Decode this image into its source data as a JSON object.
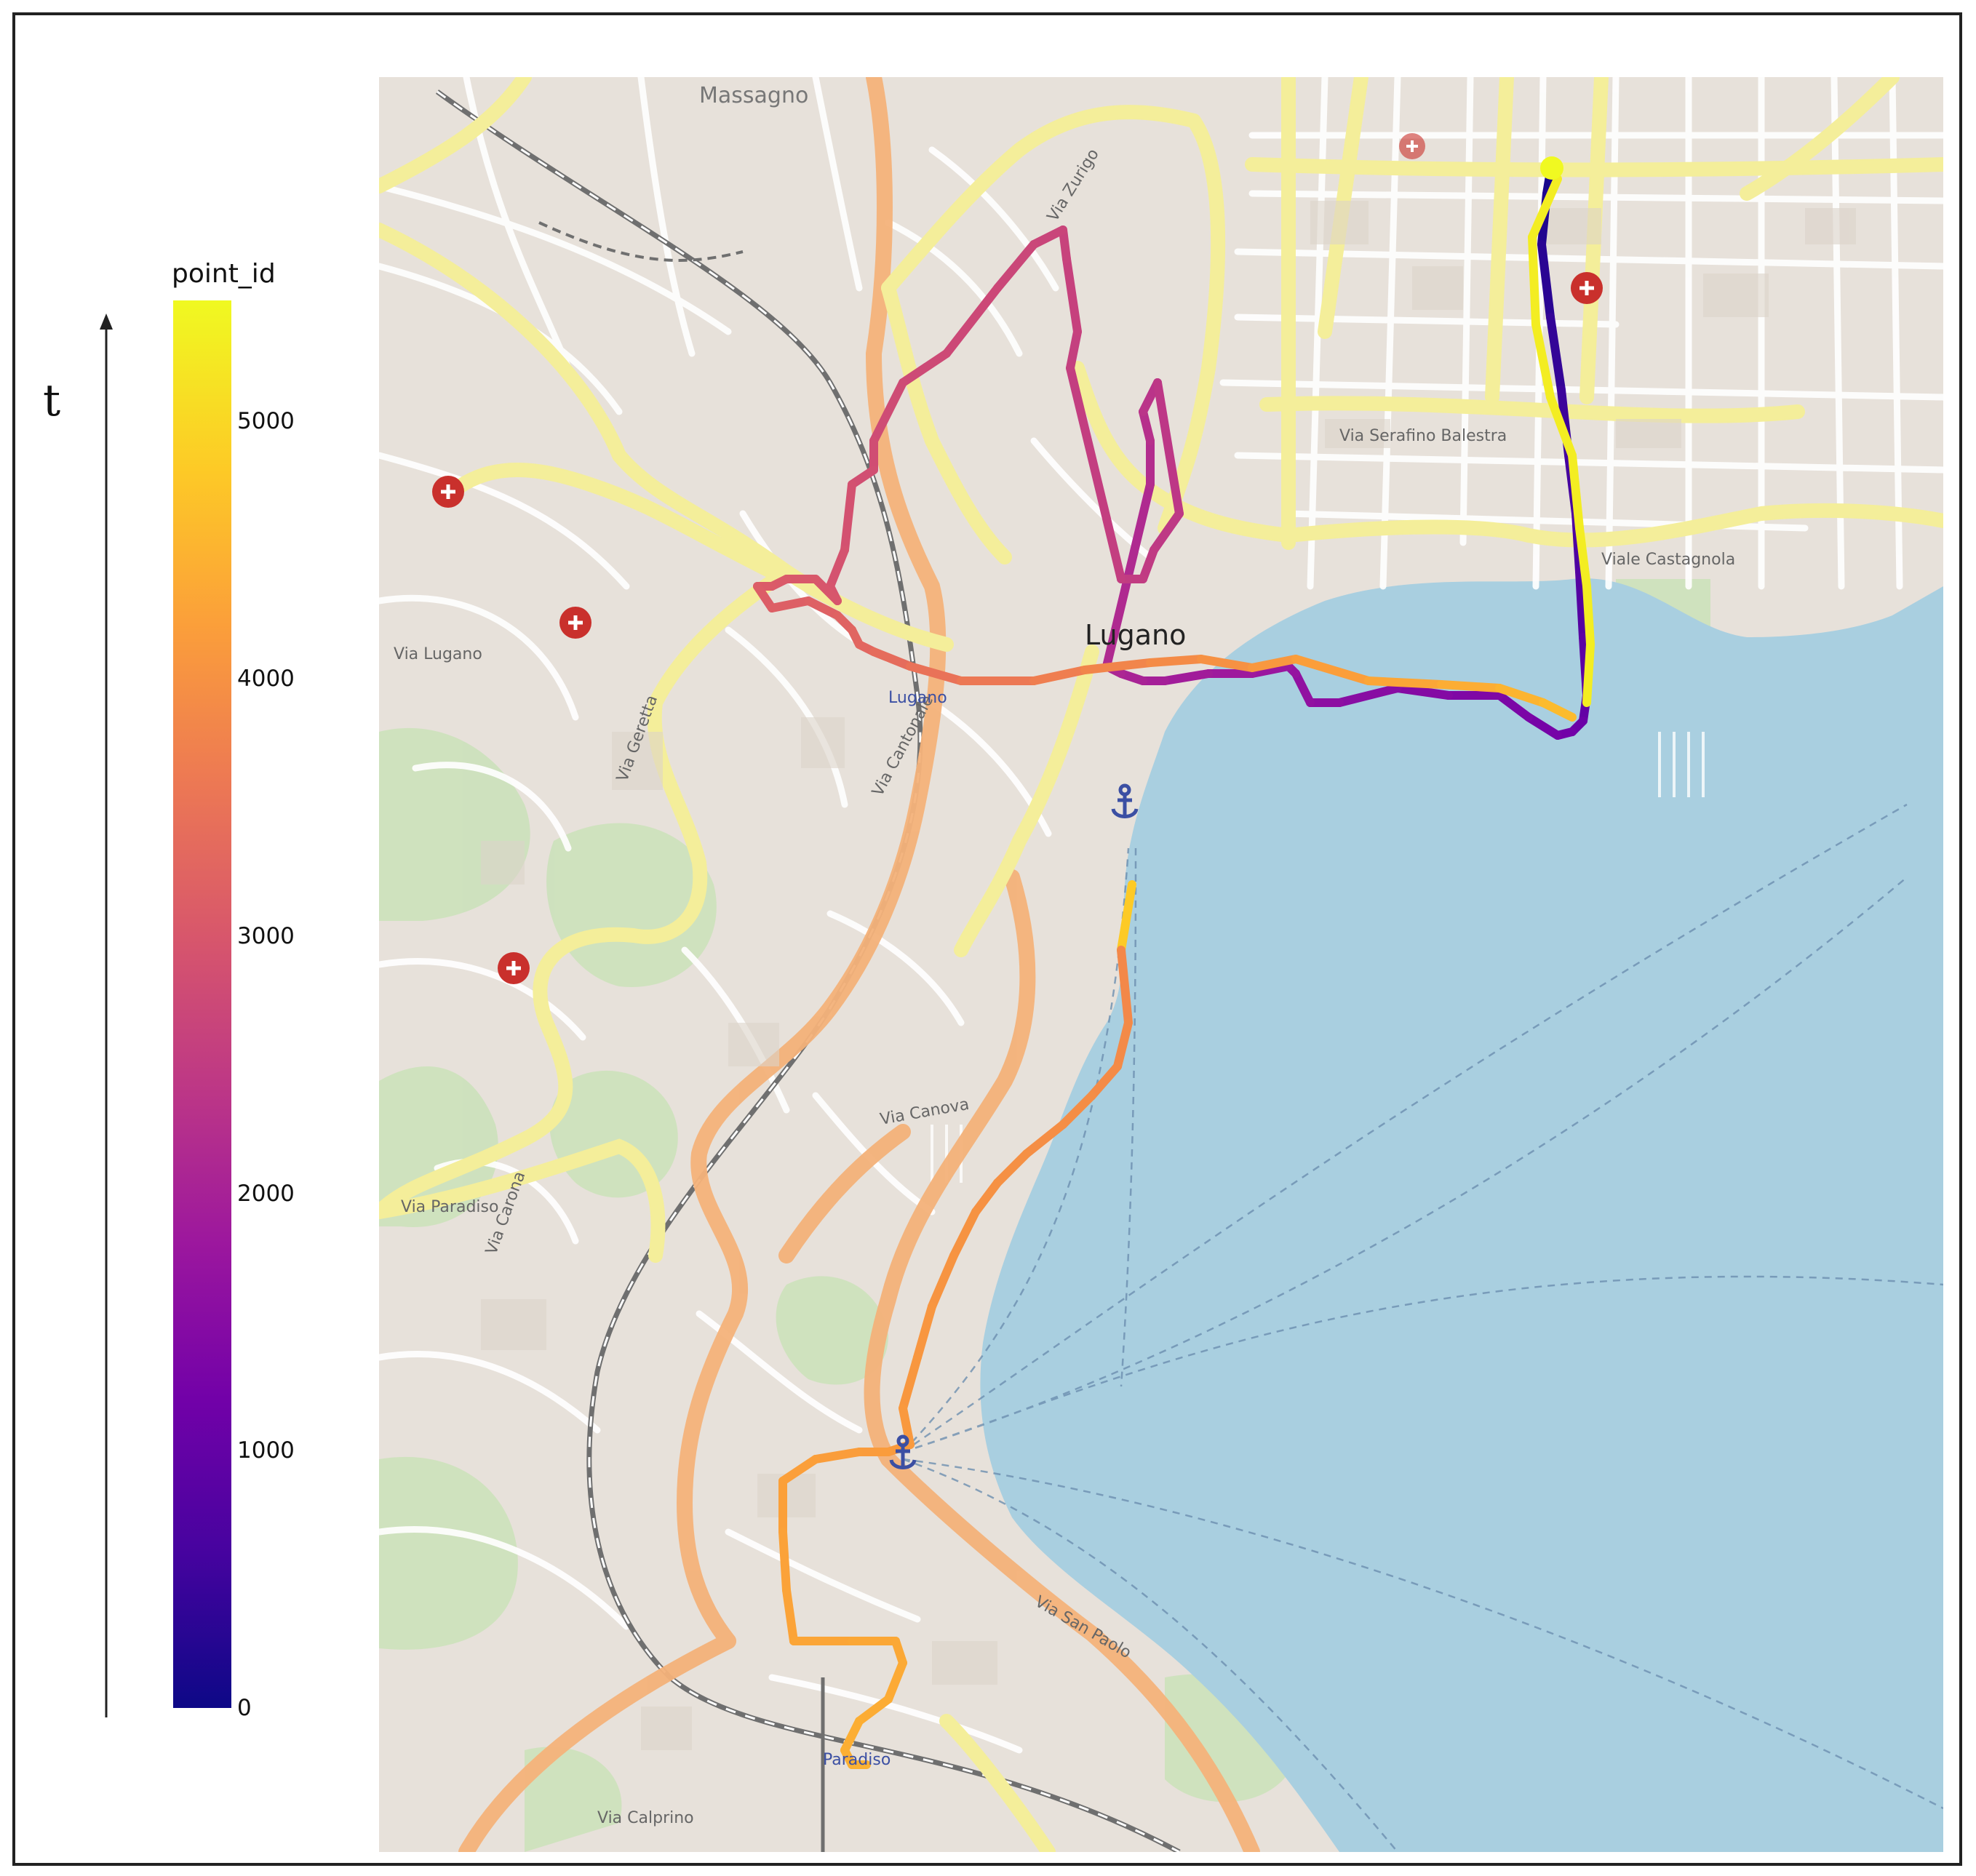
{
  "figure": {
    "axis_label": "t",
    "colorbar": {
      "title": "point_id",
      "colormap": "plasma",
      "min": 0,
      "max": 5470,
      "ticks": [
        "0",
        "1000",
        "2000",
        "3000",
        "4000",
        "5000"
      ],
      "tick_values": [
        0,
        1000,
        2000,
        3000,
        4000,
        5000
      ]
    }
  },
  "map": {
    "city_label": "Lugano",
    "colors": {
      "land": "#e9e3dc",
      "water": "#a9cfe0",
      "park": "#cfe3c0",
      "major_road": "#f6f1a6",
      "motorway": "#f4b27a",
      "railway": "#777777"
    },
    "street_labels": [
      "Massagno",
      "Via Cantonale",
      "Via Zurigo",
      "Via Serafino Balestra",
      "Viale Castagnola",
      "Via San Paolo",
      "Via Canova",
      "Via Paradiso",
      "Via Carona",
      "Via Lugano",
      "Via Geretta",
      "Via Calprino"
    ],
    "station_labels": [
      "Lugano",
      "Paradiso"
    ],
    "hospital_icon_count": 5
  }
}
